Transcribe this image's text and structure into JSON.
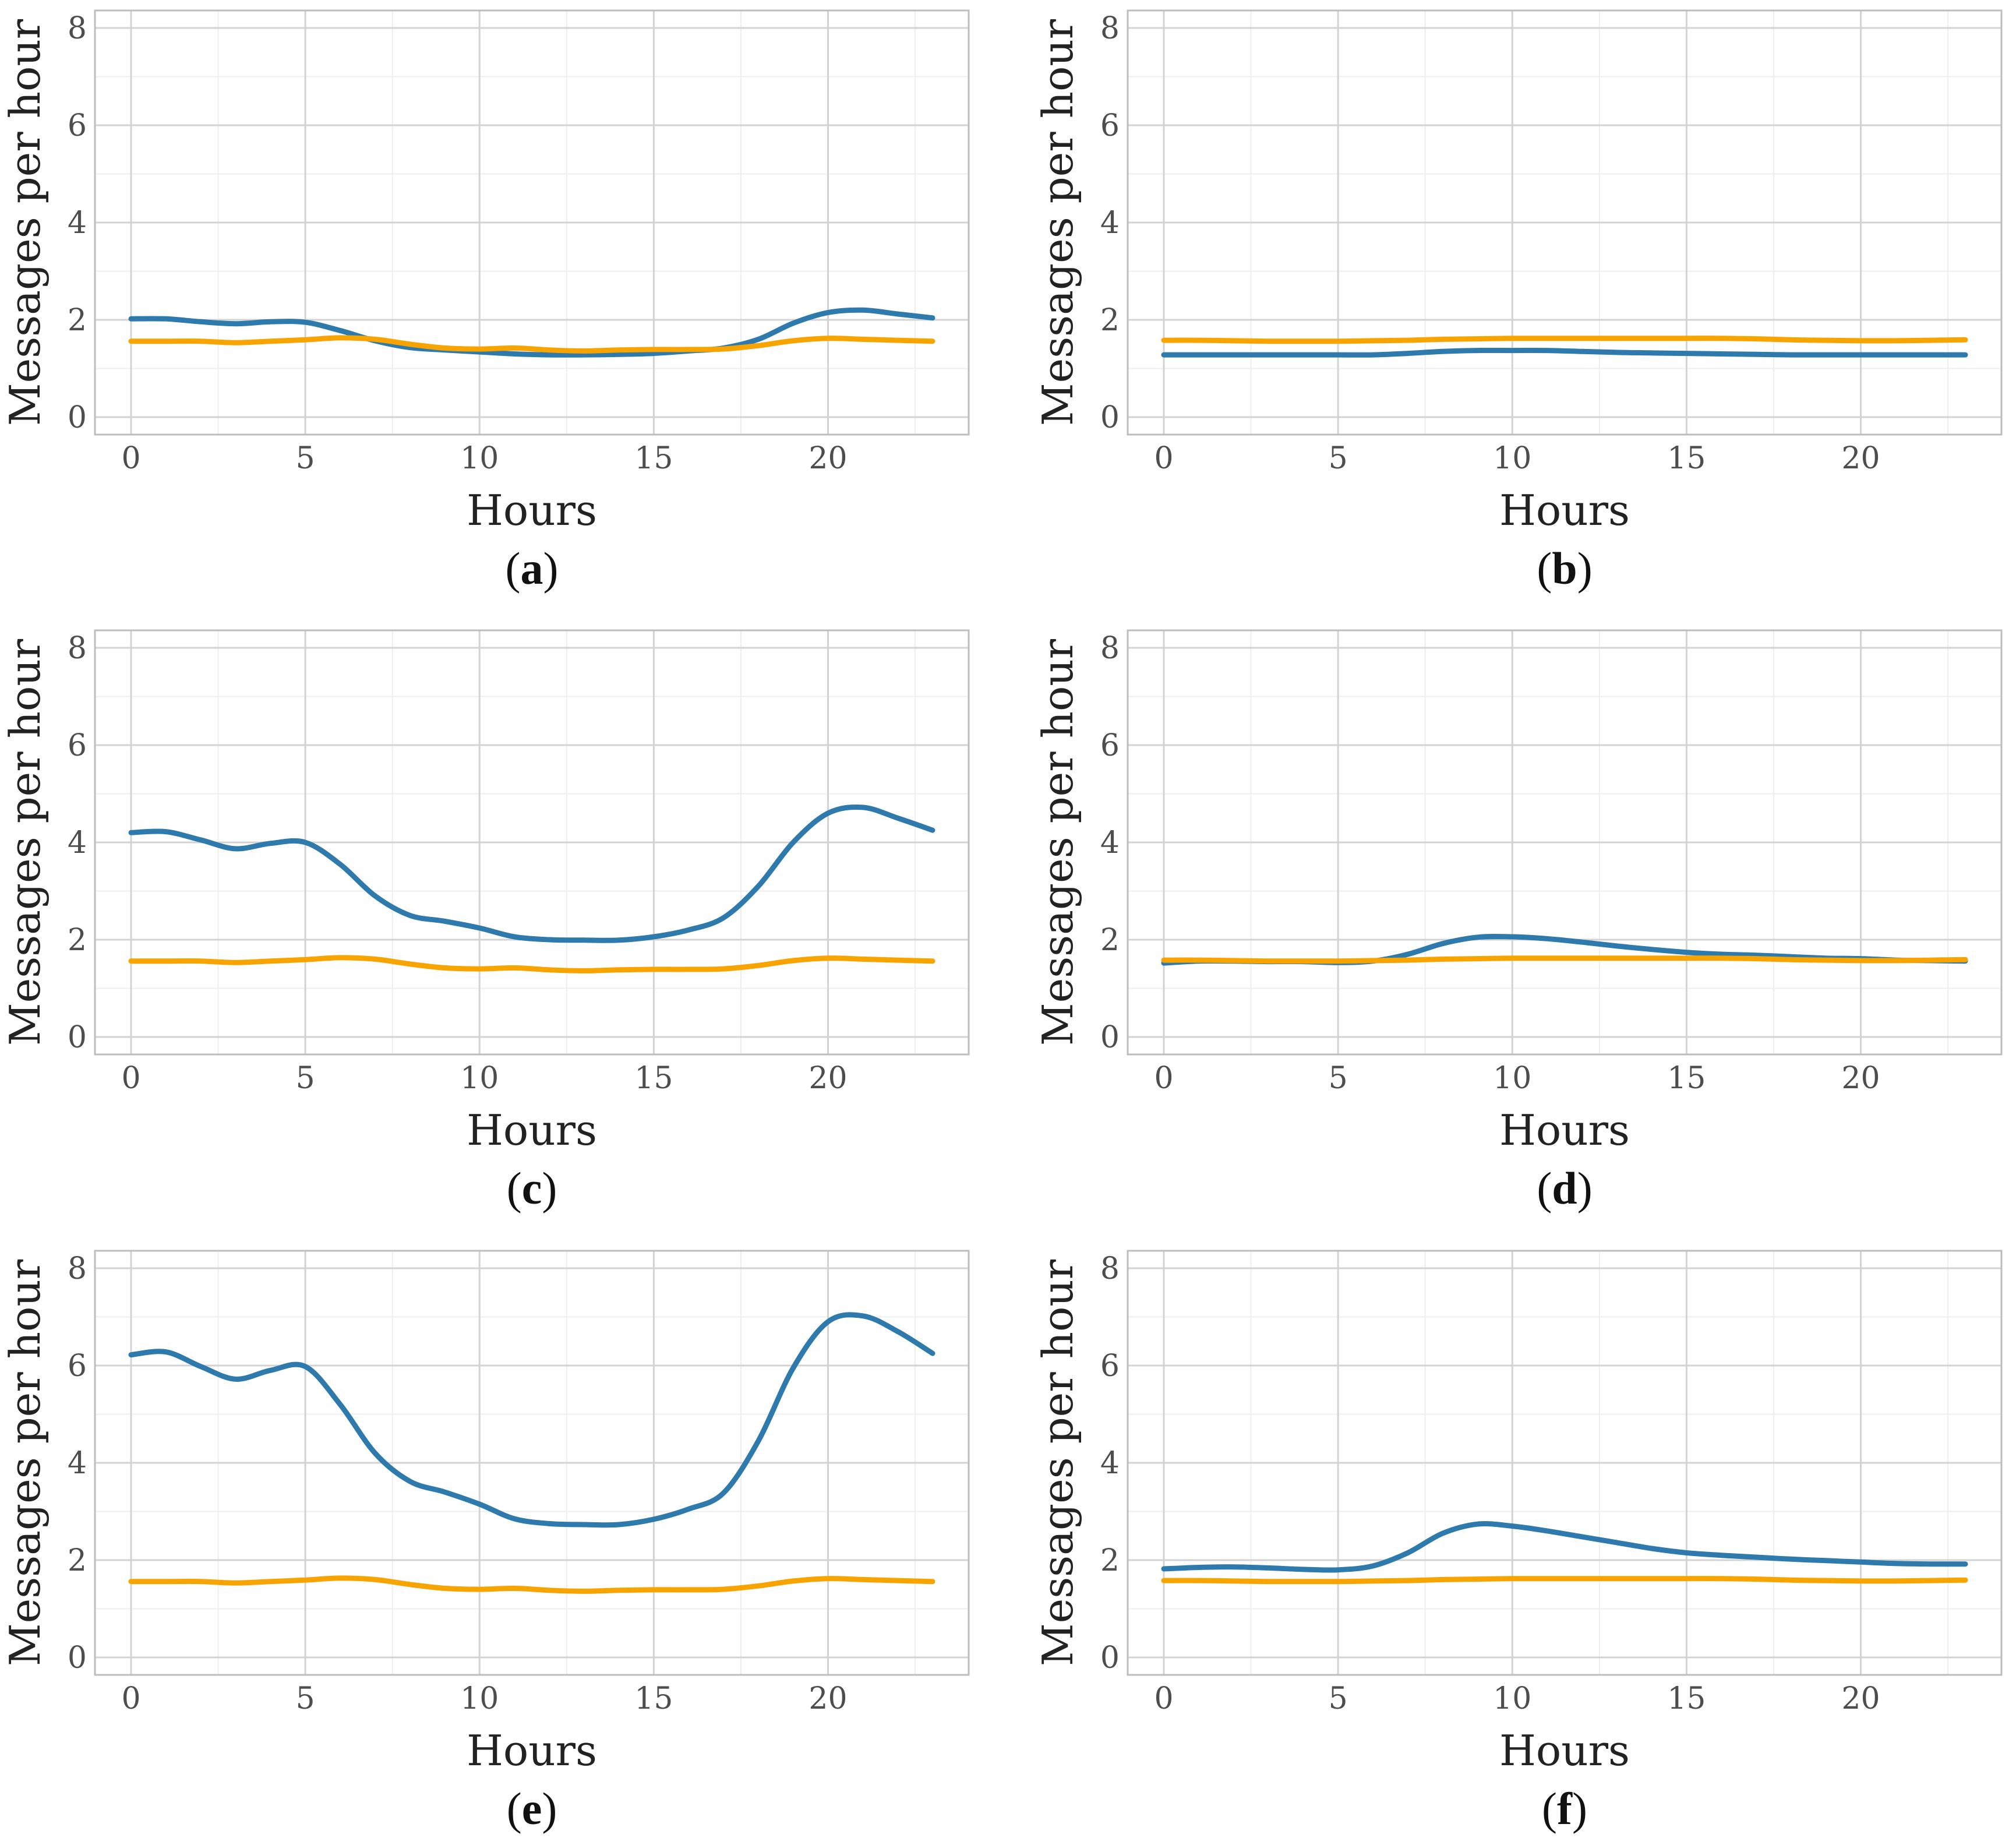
{
  "chart_data": [
    {
      "panel": "a",
      "type": "line",
      "xlabel": "Hours",
      "ylabel": "Messages per hour",
      "xlim": [
        0,
        23
      ],
      "ylim": [
        0,
        8
      ],
      "x_ticks": [
        "0",
        "5",
        "10",
        "15",
        "20"
      ],
      "y_ticks": [
        "0",
        "2",
        "4",
        "6",
        "8"
      ],
      "caption": {
        "open": "(",
        "letter": "a",
        "close": ")"
      },
      "series": [
        {
          "name": "blue",
          "color": "#2e7aac",
          "x": [
            0,
            1,
            2,
            3,
            4,
            5,
            6,
            7,
            8,
            9,
            10,
            11,
            12,
            13,
            14,
            15,
            16,
            17,
            18,
            19,
            20,
            21,
            22,
            23
          ],
          "values": [
            2.02,
            2.02,
            1.96,
            1.92,
            1.96,
            1.95,
            1.78,
            1.57,
            1.43,
            1.38,
            1.34,
            1.3,
            1.28,
            1.28,
            1.29,
            1.31,
            1.36,
            1.42,
            1.6,
            1.93,
            2.15,
            2.2,
            2.12,
            2.04
          ]
        },
        {
          "name": "orange",
          "color": "#f7a400",
          "x": [
            0,
            1,
            2,
            3,
            4,
            5,
            6,
            7,
            8,
            9,
            10,
            11,
            12,
            13,
            14,
            15,
            16,
            17,
            18,
            19,
            20,
            21,
            22,
            23
          ],
          "values": [
            1.56,
            1.56,
            1.56,
            1.53,
            1.56,
            1.59,
            1.63,
            1.6,
            1.5,
            1.42,
            1.4,
            1.42,
            1.38,
            1.36,
            1.38,
            1.39,
            1.39,
            1.4,
            1.47,
            1.57,
            1.62,
            1.6,
            1.58,
            1.56
          ]
        }
      ]
    },
    {
      "panel": "b",
      "type": "line",
      "xlabel": "Hours",
      "ylabel": "Messages per hour",
      "xlim": [
        0,
        23
      ],
      "ylim": [
        0,
        8
      ],
      "x_ticks": [
        "0",
        "5",
        "10",
        "15",
        "20"
      ],
      "y_ticks": [
        "0",
        "2",
        "4",
        "6",
        "8"
      ],
      "caption": {
        "open": "(",
        "letter": "b",
        "close": ")"
      },
      "series": [
        {
          "name": "blue",
          "color": "#2e7aac",
          "x": [
            0,
            1,
            2,
            3,
            4,
            5,
            6,
            7,
            8,
            9,
            10,
            11,
            12,
            13,
            14,
            15,
            16,
            17,
            18,
            19,
            20,
            21,
            22,
            23
          ],
          "values": [
            1.28,
            1.28,
            1.28,
            1.28,
            1.28,
            1.28,
            1.28,
            1.31,
            1.35,
            1.37,
            1.37,
            1.37,
            1.35,
            1.33,
            1.32,
            1.31,
            1.3,
            1.29,
            1.28,
            1.28,
            1.28,
            1.28,
            1.28,
            1.28
          ]
        },
        {
          "name": "orange",
          "color": "#f7a400",
          "x": [
            0,
            1,
            2,
            3,
            4,
            5,
            6,
            7,
            8,
            9,
            10,
            11,
            12,
            13,
            14,
            15,
            16,
            17,
            18,
            19,
            20,
            21,
            22,
            23
          ],
          "values": [
            1.58,
            1.58,
            1.57,
            1.56,
            1.56,
            1.56,
            1.57,
            1.58,
            1.6,
            1.61,
            1.62,
            1.62,
            1.62,
            1.62,
            1.62,
            1.62,
            1.62,
            1.61,
            1.59,
            1.58,
            1.57,
            1.57,
            1.58,
            1.59
          ]
        }
      ]
    },
    {
      "panel": "c",
      "type": "line",
      "xlabel": "Hours",
      "ylabel": "Messages per hour",
      "xlim": [
        0,
        23
      ],
      "ylim": [
        0,
        8
      ],
      "x_ticks": [
        "0",
        "5",
        "10",
        "15",
        "20"
      ],
      "y_ticks": [
        "0",
        "2",
        "4",
        "6",
        "8"
      ],
      "caption": {
        "open": "(",
        "letter": "c",
        "close": ")"
      },
      "series": [
        {
          "name": "blue",
          "color": "#2e7aac",
          "x": [
            0,
            1,
            2,
            3,
            4,
            5,
            6,
            7,
            8,
            9,
            10,
            11,
            12,
            13,
            14,
            15,
            16,
            17,
            18,
            19,
            20,
            21,
            22,
            23
          ],
          "values": [
            4.2,
            4.22,
            4.05,
            3.87,
            3.98,
            4.0,
            3.55,
            2.9,
            2.5,
            2.38,
            2.24,
            2.06,
            2.0,
            1.99,
            1.99,
            2.06,
            2.2,
            2.45,
            3.1,
            4.0,
            4.6,
            4.72,
            4.5,
            4.25
          ]
        },
        {
          "name": "orange",
          "color": "#f7a400",
          "x": [
            0,
            1,
            2,
            3,
            4,
            5,
            6,
            7,
            8,
            9,
            10,
            11,
            12,
            13,
            14,
            15,
            16,
            17,
            18,
            19,
            20,
            21,
            22,
            23
          ],
          "values": [
            1.56,
            1.56,
            1.56,
            1.53,
            1.56,
            1.59,
            1.63,
            1.6,
            1.5,
            1.42,
            1.4,
            1.42,
            1.38,
            1.36,
            1.38,
            1.39,
            1.39,
            1.4,
            1.47,
            1.57,
            1.62,
            1.6,
            1.58,
            1.56
          ]
        }
      ]
    },
    {
      "panel": "d",
      "type": "line",
      "xlabel": "Hours",
      "ylabel": "Messages per hour",
      "xlim": [
        0,
        23
      ],
      "ylim": [
        0,
        8
      ],
      "x_ticks": [
        "0",
        "5",
        "10",
        "15",
        "20"
      ],
      "y_ticks": [
        "0",
        "2",
        "4",
        "6",
        "8"
      ],
      "caption": {
        "open": "(",
        "letter": "d",
        "close": ")"
      },
      "series": [
        {
          "name": "blue",
          "color": "#2e7aac",
          "x": [
            0,
            1,
            2,
            3,
            4,
            5,
            6,
            7,
            8,
            9,
            10,
            11,
            12,
            13,
            14,
            15,
            16,
            17,
            18,
            19,
            20,
            21,
            22,
            23
          ],
          "values": [
            1.52,
            1.56,
            1.56,
            1.55,
            1.55,
            1.53,
            1.56,
            1.7,
            1.92,
            2.05,
            2.06,
            2.02,
            1.95,
            1.87,
            1.8,
            1.74,
            1.7,
            1.68,
            1.65,
            1.62,
            1.61,
            1.58,
            1.57,
            1.56
          ]
        },
        {
          "name": "orange",
          "color": "#f7a400",
          "x": [
            0,
            1,
            2,
            3,
            4,
            5,
            6,
            7,
            8,
            9,
            10,
            11,
            12,
            13,
            14,
            15,
            16,
            17,
            18,
            19,
            20,
            21,
            22,
            23
          ],
          "values": [
            1.58,
            1.58,
            1.57,
            1.56,
            1.56,
            1.56,
            1.57,
            1.58,
            1.6,
            1.61,
            1.62,
            1.62,
            1.62,
            1.62,
            1.62,
            1.62,
            1.62,
            1.61,
            1.59,
            1.58,
            1.57,
            1.57,
            1.58,
            1.59
          ]
        }
      ]
    },
    {
      "panel": "e",
      "type": "line",
      "xlabel": "Hours",
      "ylabel": "Messages per hour",
      "xlim": [
        0,
        23
      ],
      "ylim": [
        0,
        8
      ],
      "x_ticks": [
        "0",
        "5",
        "10",
        "15",
        "20"
      ],
      "y_ticks": [
        "0",
        "2",
        "4",
        "6",
        "8"
      ],
      "caption": {
        "open": "(",
        "letter": "e",
        "close": ")"
      },
      "series": [
        {
          "name": "blue",
          "color": "#2e7aac",
          "x": [
            0,
            1,
            2,
            3,
            4,
            5,
            6,
            7,
            8,
            9,
            10,
            11,
            12,
            13,
            14,
            15,
            16,
            17,
            18,
            19,
            20,
            21,
            22,
            23
          ],
          "values": [
            6.22,
            6.28,
            5.98,
            5.72,
            5.9,
            5.98,
            5.2,
            4.2,
            3.62,
            3.4,
            3.15,
            2.85,
            2.75,
            2.73,
            2.73,
            2.84,
            3.05,
            3.38,
            4.45,
            5.95,
            6.9,
            7.02,
            6.7,
            6.25
          ]
        },
        {
          "name": "orange",
          "color": "#f7a400",
          "x": [
            0,
            1,
            2,
            3,
            4,
            5,
            6,
            7,
            8,
            9,
            10,
            11,
            12,
            13,
            14,
            15,
            16,
            17,
            18,
            19,
            20,
            21,
            22,
            23
          ],
          "values": [
            1.56,
            1.56,
            1.56,
            1.53,
            1.56,
            1.59,
            1.63,
            1.6,
            1.5,
            1.42,
            1.4,
            1.42,
            1.38,
            1.36,
            1.38,
            1.39,
            1.39,
            1.4,
            1.47,
            1.57,
            1.62,
            1.6,
            1.58,
            1.56
          ]
        }
      ]
    },
    {
      "panel": "f",
      "type": "line",
      "xlabel": "Hours",
      "ylabel": "Messages per hour",
      "xlim": [
        0,
        23
      ],
      "ylim": [
        0,
        8
      ],
      "x_ticks": [
        "0",
        "5",
        "10",
        "15",
        "20"
      ],
      "y_ticks": [
        "0",
        "2",
        "4",
        "6",
        "8"
      ],
      "caption": {
        "open": "(",
        "letter": "f",
        "close": ")"
      },
      "series": [
        {
          "name": "blue",
          "color": "#2e7aac",
          "x": [
            0,
            1,
            2,
            3,
            4,
            5,
            6,
            7,
            8,
            9,
            10,
            11,
            12,
            13,
            14,
            15,
            16,
            17,
            18,
            19,
            20,
            21,
            22,
            23
          ],
          "values": [
            1.82,
            1.85,
            1.86,
            1.84,
            1.81,
            1.8,
            1.88,
            2.15,
            2.55,
            2.74,
            2.7,
            2.6,
            2.48,
            2.36,
            2.24,
            2.15,
            2.1,
            2.06,
            2.02,
            1.99,
            1.96,
            1.93,
            1.92,
            1.92
          ]
        },
        {
          "name": "orange",
          "color": "#f7a400",
          "x": [
            0,
            1,
            2,
            3,
            4,
            5,
            6,
            7,
            8,
            9,
            10,
            11,
            12,
            13,
            14,
            15,
            16,
            17,
            18,
            19,
            20,
            21,
            22,
            23
          ],
          "values": [
            1.58,
            1.58,
            1.57,
            1.56,
            1.56,
            1.56,
            1.57,
            1.58,
            1.6,
            1.61,
            1.62,
            1.62,
            1.62,
            1.62,
            1.62,
            1.62,
            1.62,
            1.61,
            1.59,
            1.58,
            1.57,
            1.57,
            1.58,
            1.59
          ]
        }
      ]
    }
  ]
}
